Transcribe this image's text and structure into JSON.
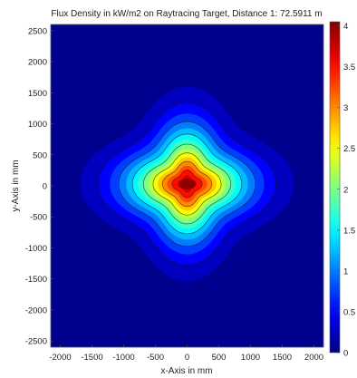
{
  "chart_data": {
    "type": "heatmap",
    "title": "Flux Density in kW/m2 on Raytracing Target, Distance 1: 72.5911 m",
    "xlabel": "x-Axis in mm",
    "ylabel": "y-Axis in mm",
    "xlim": [
      -2150,
      2150
    ],
    "ylim": [
      -2600,
      2600
    ],
    "x_ticks": [
      -2000,
      -1500,
      -1000,
      -500,
      0,
      500,
      1000,
      1500,
      2000
    ],
    "y_ticks": [
      2500,
      2000,
      1500,
      1000,
      500,
      0,
      -500,
      -1000,
      -1500,
      -2000,
      -2500
    ],
    "colorbar": {
      "min": 0,
      "max": 4.05,
      "ticks": [
        0,
        0.5,
        1,
        1.5,
        2,
        2.5,
        3,
        3.5,
        4
      ],
      "colormap": "jet"
    },
    "contour_levels": [
      0.5,
      1,
      1.5,
      2,
      2.5,
      3,
      3.5
    ],
    "peak": {
      "x": 0,
      "y": 30,
      "value": 4.0
    },
    "grid": false
  }
}
